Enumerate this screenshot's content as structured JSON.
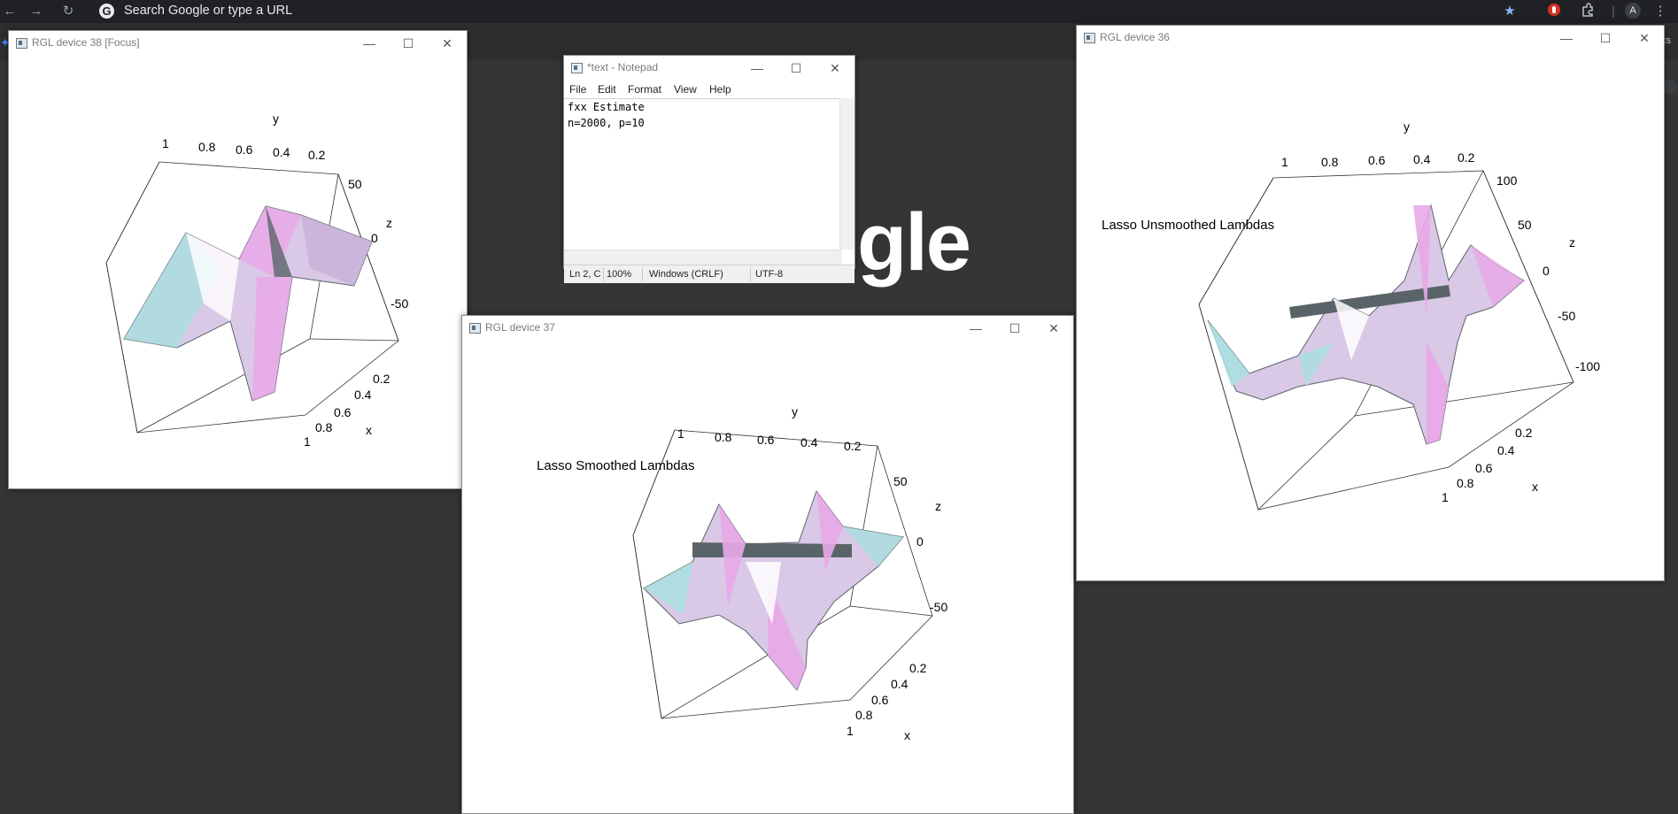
{
  "browser": {
    "omnibox_placeholder": "Search Google or type a URL",
    "google_logo_fragment": "gle",
    "right_edge_fragment": "ks",
    "avatar_letter": "A"
  },
  "windows": {
    "rgl38": {
      "title": "RGL device 38 [Focus]",
      "plot": {
        "axis_y_label": "y",
        "axis_z_label": "z",
        "axis_x_label": "x",
        "y_ticks": [
          "1",
          "0.8",
          "0.6",
          "0.4",
          "0.2"
        ],
        "z_ticks": [
          "50",
          "0",
          "-50"
        ],
        "x_ticks": [
          "0.2",
          "0.4",
          "0.6",
          "0.8",
          "1"
        ]
      }
    },
    "notepad": {
      "title": "*text - Notepad",
      "menu": [
        "File",
        "Edit",
        "Format",
        "View",
        "Help"
      ],
      "lines": [
        "fxx Estimate",
        "n=2000, p=10"
      ],
      "status": {
        "position": "Ln 2, C",
        "zoom": "100%",
        "line_endings": "Windows (CRLF)",
        "encoding": "UTF-8"
      }
    },
    "rgl37": {
      "title": "RGL device 37",
      "plot": {
        "caption": "Lasso Smoothed Lambdas",
        "axis_y_label": "y",
        "axis_z_label": "z",
        "axis_x_label": "x",
        "y_ticks": [
          "1",
          "0.8",
          "0.6",
          "0.4",
          "0.2"
        ],
        "z_ticks": [
          "50",
          "0",
          "-50"
        ],
        "x_ticks": [
          "0.2",
          "0.4",
          "0.6",
          "0.8",
          "1"
        ]
      }
    },
    "rgl36": {
      "title": "RGL device 36",
      "plot": {
        "caption": "Lasso Unsmoothed Lambdas",
        "axis_y_label": "y",
        "axis_z_label": "z",
        "axis_x_label": "x",
        "y_ticks": [
          "1",
          "0.8",
          "0.6",
          "0.4",
          "0.2"
        ],
        "z_ticks": [
          "100",
          "50",
          "0",
          "-50",
          "-100"
        ],
        "x_ticks": [
          "0.2",
          "0.4",
          "0.6",
          "0.8",
          "1"
        ]
      }
    }
  },
  "colors": {
    "surface_pink": "#e8a8e8",
    "surface_cyan": "#a8e0e0",
    "surface_dark": "#5a6468",
    "desktop_bg": "#353535",
    "browser_bar": "#202124"
  }
}
